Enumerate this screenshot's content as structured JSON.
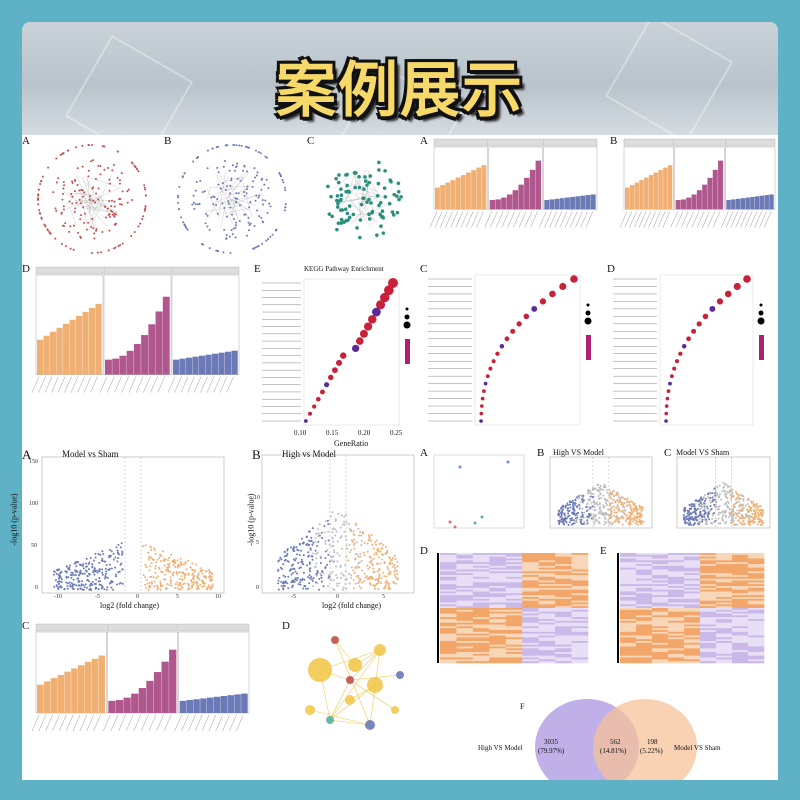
{
  "title": "案例展示",
  "colors": {
    "orange": "#f0b074",
    "purple": "#b0588e",
    "blue": "#6b7ab6",
    "gray": "#bdbdbd",
    "red": "#c8213a",
    "teal": "#2a8f7d",
    "venn_left": "#b9a7e6",
    "venn_right": "#f7c29a"
  },
  "panels": {
    "net_a": {
      "letter": "A"
    },
    "net_b": {
      "letter": "B"
    },
    "net_c": {
      "letter": "C"
    },
    "go_a": {
      "letter": "A"
    },
    "go_b": {
      "letter": "B"
    },
    "go_d": {
      "letter": "D"
    },
    "kegg": {
      "letter": "E",
      "title": "KEGG Pathway Enrichment",
      "xlabel": "GeneRatio",
      "ticks": [
        "0.10",
        "0.15",
        "0.20",
        "0.25"
      ]
    },
    "dot_c": {
      "letter": "C"
    },
    "dot_d": {
      "letter": "D"
    },
    "volc_a": {
      "letter": "A",
      "title": "Model vs Sham",
      "xlabel": "log2 (fold change)",
      "ylabel": "-log10 (p-value)",
      "xticks": [
        "-10",
        "-5",
        "0",
        "5",
        "10"
      ],
      "yticks": [
        "0",
        "50",
        "100",
        "150"
      ]
    },
    "volc_b": {
      "letter": "B",
      "title": "High vs Model",
      "xlabel": "log2 (fold change)",
      "ylabel": "-log10 (p-value)",
      "xticks": [
        "-5",
        "0",
        "5"
      ],
      "yticks": [
        "0",
        "5",
        "10"
      ]
    },
    "pca": {
      "letter": "A"
    },
    "volc_small_b": {
      "letter": "B",
      "title": "High VS Model"
    },
    "volc_small_c": {
      "letter": "C",
      "title": "Model VS Sham"
    },
    "heat_d": {
      "letter": "D"
    },
    "heat_e": {
      "letter": "E"
    },
    "go_c": {
      "letter": "C"
    },
    "bubble_d": {
      "letter": "D"
    },
    "venn": {
      "letter": "F",
      "left_label": "High VS Model",
      "right_label": "Model VS Sham",
      "left_count": "3035",
      "left_pct": "(79.97%)",
      "mid_count": "562",
      "mid_pct": "(14.81%)",
      "right_count": "198",
      "right_pct": "(5.22%)"
    }
  }
}
